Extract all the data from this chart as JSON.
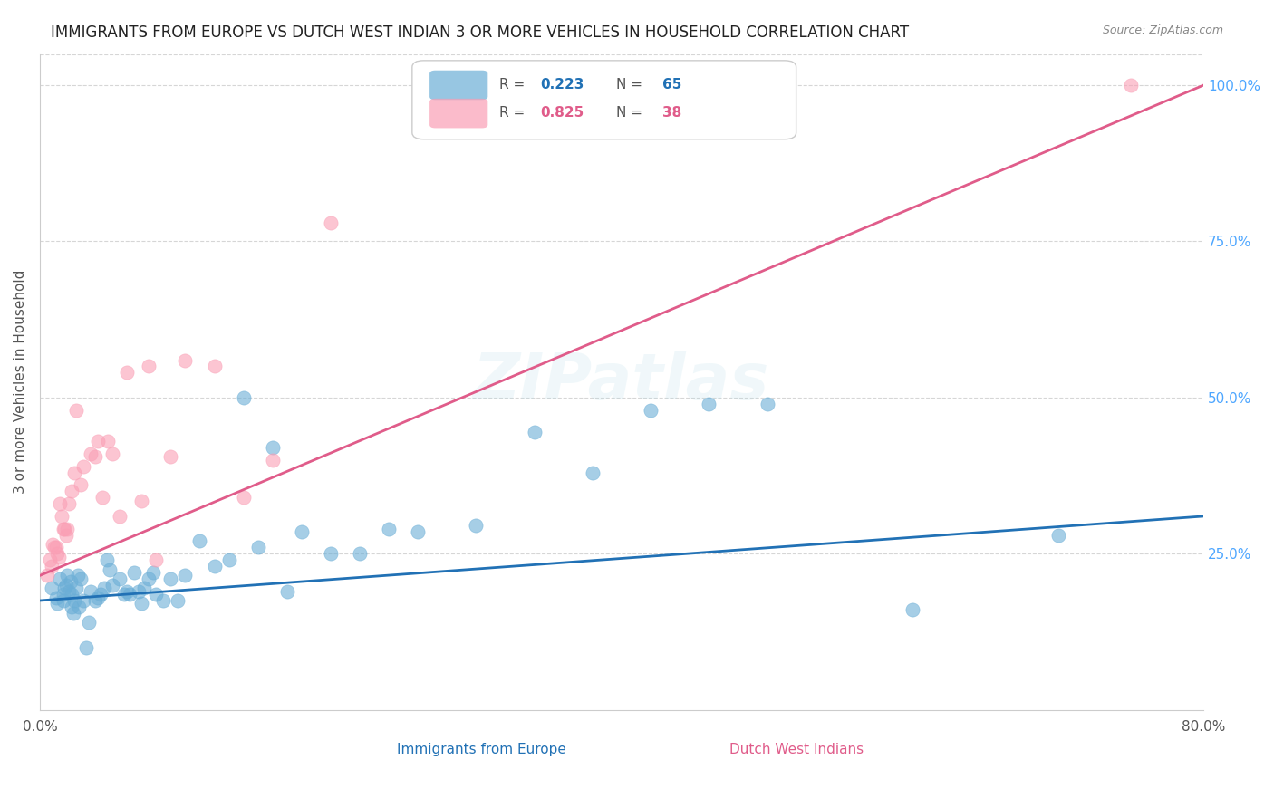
{
  "title": "IMMIGRANTS FROM EUROPE VS DUTCH WEST INDIAN 3 OR MORE VEHICLES IN HOUSEHOLD CORRELATION CHART",
  "source": "Source: ZipAtlas.com",
  "xlabel": "",
  "ylabel": "3 or more Vehicles in Household",
  "xlim": [
    0.0,
    0.8
  ],
  "ylim": [
    0.0,
    1.05
  ],
  "xticks": [
    0.0,
    0.8
  ],
  "xticklabels": [
    "0.0%",
    "80.0%"
  ],
  "yticks_right": [
    0.0,
    0.25,
    0.5,
    0.75,
    1.0
  ],
  "ytick_right_labels": [
    "",
    "25.0%",
    "50.0%",
    "75.0%",
    "100.0%"
  ],
  "legend_blue_r": "R = 0.223",
  "legend_blue_n": "N = 65",
  "legend_pink_r": "R = 0.825",
  "legend_pink_n": "N = 38",
  "blue_color": "#6baed6",
  "pink_color": "#fa9fb5",
  "blue_line_color": "#2171b5",
  "pink_line_color": "#e05c8a",
  "title_color": "#222222",
  "axis_label_color": "#555555",
  "right_tick_color": "#4da6ff",
  "watermark": "ZIPatlas",
  "blue_scatter_x": [
    0.008,
    0.011,
    0.012,
    0.014,
    0.016,
    0.016,
    0.017,
    0.018,
    0.019,
    0.02,
    0.021,
    0.022,
    0.022,
    0.023,
    0.024,
    0.025,
    0.026,
    0.027,
    0.028,
    0.03,
    0.032,
    0.034,
    0.035,
    0.038,
    0.04,
    0.042,
    0.044,
    0.046,
    0.048,
    0.05,
    0.055,
    0.058,
    0.06,
    0.062,
    0.065,
    0.068,
    0.07,
    0.072,
    0.075,
    0.078,
    0.08,
    0.085,
    0.09,
    0.095,
    0.1,
    0.11,
    0.12,
    0.13,
    0.14,
    0.15,
    0.16,
    0.17,
    0.18,
    0.2,
    0.22,
    0.24,
    0.26,
    0.3,
    0.34,
    0.38,
    0.42,
    0.46,
    0.5,
    0.6,
    0.7
  ],
  "blue_scatter_y": [
    0.195,
    0.18,
    0.17,
    0.21,
    0.185,
    0.175,
    0.195,
    0.2,
    0.215,
    0.19,
    0.205,
    0.185,
    0.165,
    0.155,
    0.175,
    0.195,
    0.215,
    0.165,
    0.21,
    0.175,
    0.1,
    0.14,
    0.19,
    0.175,
    0.18,
    0.185,
    0.195,
    0.24,
    0.225,
    0.2,
    0.21,
    0.185,
    0.19,
    0.185,
    0.22,
    0.19,
    0.17,
    0.195,
    0.21,
    0.22,
    0.185,
    0.175,
    0.21,
    0.175,
    0.215,
    0.27,
    0.23,
    0.24,
    0.5,
    0.26,
    0.42,
    0.19,
    0.285,
    0.25,
    0.25,
    0.29,
    0.285,
    0.295,
    0.445,
    0.38,
    0.48,
    0.49,
    0.49,
    0.16,
    0.28
  ],
  "pink_scatter_x": [
    0.005,
    0.007,
    0.008,
    0.009,
    0.01,
    0.011,
    0.012,
    0.013,
    0.014,
    0.015,
    0.016,
    0.017,
    0.018,
    0.019,
    0.02,
    0.022,
    0.024,
    0.025,
    0.028,
    0.03,
    0.035,
    0.038,
    0.04,
    0.043,
    0.047,
    0.05,
    0.055,
    0.06,
    0.07,
    0.075,
    0.08,
    0.09,
    0.1,
    0.12,
    0.14,
    0.16,
    0.2,
    0.75
  ],
  "pink_scatter_y": [
    0.215,
    0.24,
    0.23,
    0.265,
    0.26,
    0.26,
    0.25,
    0.245,
    0.33,
    0.31,
    0.29,
    0.29,
    0.28,
    0.29,
    0.33,
    0.35,
    0.38,
    0.48,
    0.36,
    0.39,
    0.41,
    0.405,
    0.43,
    0.34,
    0.43,
    0.41,
    0.31,
    0.54,
    0.335,
    0.55,
    0.24,
    0.405,
    0.56,
    0.55,
    0.34,
    0.4,
    0.78,
    1.0
  ],
  "blue_trend_x": [
    0.0,
    0.8
  ],
  "blue_trend_y": [
    0.175,
    0.31
  ],
  "pink_trend_x": [
    0.0,
    0.8
  ],
  "pink_trend_y": [
    0.215,
    1.0
  ],
  "grid_color": "#cccccc",
  "background_color": "#ffffff"
}
